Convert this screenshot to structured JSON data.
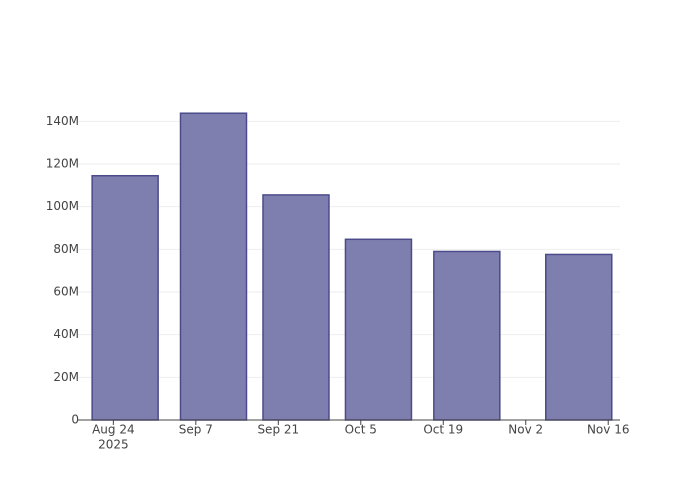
{
  "chart_data": {
    "type": "bar",
    "x": [
      "2025-08-26",
      "2025-09-10",
      "2025-09-24",
      "2025-10-08",
      "2025-10-23",
      "2025-11-11"
    ],
    "values": [
      114500000,
      143800000,
      105500000,
      84700000,
      79000000,
      77600000
    ],
    "color": "#7f7faf",
    "edge_color": "#4b4b8b",
    "xlim": [
      "2025-08-18",
      "2025-11-18"
    ],
    "xticks": [
      {
        "value": "2025-08-24",
        "label": "Aug 24",
        "sublabel": "2025"
      },
      {
        "value": "2025-09-07",
        "label": "Sep 7"
      },
      {
        "value": "2025-09-21",
        "label": "Sep 21"
      },
      {
        "value": "2025-10-05",
        "label": "Oct 5"
      },
      {
        "value": "2025-10-19",
        "label": "Oct 19"
      },
      {
        "value": "2025-11-02",
        "label": "Nov 2"
      },
      {
        "value": "2025-11-16",
        "label": "Nov 16"
      }
    ],
    "ylim": [
      0,
      150000000
    ],
    "yticks": [
      0,
      {
        "value": 20000000,
        "label": "20M"
      },
      {
        "value": 40000000,
        "label": "40M"
      },
      {
        "value": 60000000,
        "label": "60M"
      },
      {
        "value": 80000000,
        "label": "80M"
      },
      {
        "value": 100000000,
        "label": "100M"
      },
      {
        "value": 120000000,
        "label": "120M"
      },
      {
        "value": 140000000,
        "label": "140M"
      }
    ],
    "grid": true
  }
}
